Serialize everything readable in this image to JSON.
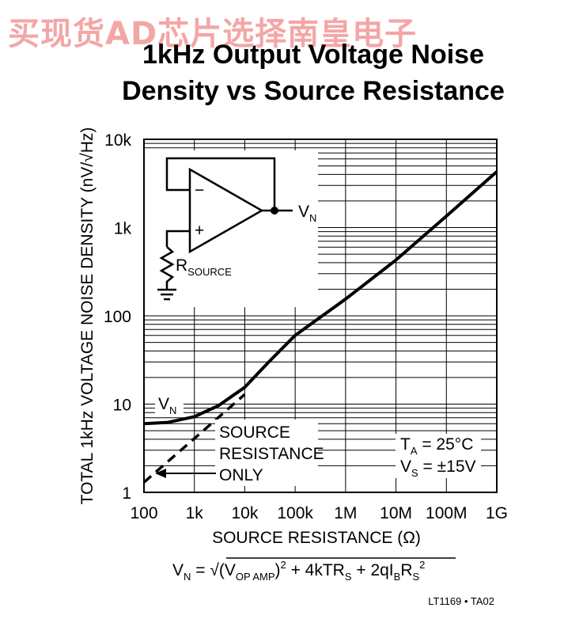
{
  "watermark": "买现货AD芯片选择南皇电子",
  "title_line1": "1kHz Output Voltage Noise",
  "title_line2": "Density vs Source Resistance",
  "footer_code": "LT1169 • TA02",
  "formula": {
    "lhs": "V",
    "lhs_sub": "N",
    "eq": " = √(V",
    "opamp_sub": "OP AMP",
    "rest1": ")",
    "sq1": "2",
    "rest2": " + 4kTR",
    "s_sub": "S",
    "rest3": " + 2qI",
    "b_sub": "B",
    "rest4": "R",
    "s_sub2": "S",
    "sq2": "2"
  },
  "annotations": {
    "vn": "V",
    "vn_sub": "N",
    "source_lines": [
      "SOURCE",
      "RESISTANCE",
      "ONLY"
    ],
    "ta": "T",
    "ta_sub": "A",
    "ta_val": " = 25°C",
    "vs": "V",
    "vs_sub": "S",
    "vs_val": " = ±15V"
  },
  "schematic": {
    "out_label": "V",
    "out_sub": "N",
    "minus": "−",
    "plus": "+",
    "r_label": "R",
    "r_sub": "SOURCE"
  },
  "chart_data": {
    "type": "line",
    "title": "1kHz Output Voltage Noise Density vs Source Resistance",
    "xlabel": "SOURCE RESISTANCE (Ω)",
    "ylabel": "TOTAL 1kHz VOLTAGE NOISE DENSITY (nV/√Hz)",
    "x_scale": "log",
    "y_scale": "log",
    "xlim": [
      100,
      1000000000
    ],
    "ylim": [
      1,
      10000
    ],
    "x_ticks": [
      100,
      1000,
      10000,
      100000,
      1000000,
      10000000,
      100000000,
      1000000000
    ],
    "x_tick_labels": [
      "100",
      "1k",
      "10k",
      "100k",
      "1M",
      "10M",
      "100M",
      "1G"
    ],
    "y_ticks": [
      1,
      10,
      100,
      1000,
      10000
    ],
    "y_tick_labels": [
      "1",
      "10",
      "100",
      "1k",
      "10k"
    ],
    "grid": true,
    "series": [
      {
        "name": "V_N",
        "style": "solid",
        "x": [
          100,
          300,
          1000,
          3000,
          10000,
          30000,
          100000,
          1000000,
          10000000,
          100000000,
          1000000000
        ],
        "y": [
          6.0,
          6.2,
          7.2,
          9.6,
          15.5,
          30,
          60,
          155,
          430,
          1350,
          4300
        ]
      },
      {
        "name": "SOURCE RESISTANCE ONLY",
        "style": "dashed",
        "x": [
          100,
          1000,
          10000
        ],
        "y": [
          1.3,
          4.07,
          12.9
        ]
      }
    ]
  }
}
